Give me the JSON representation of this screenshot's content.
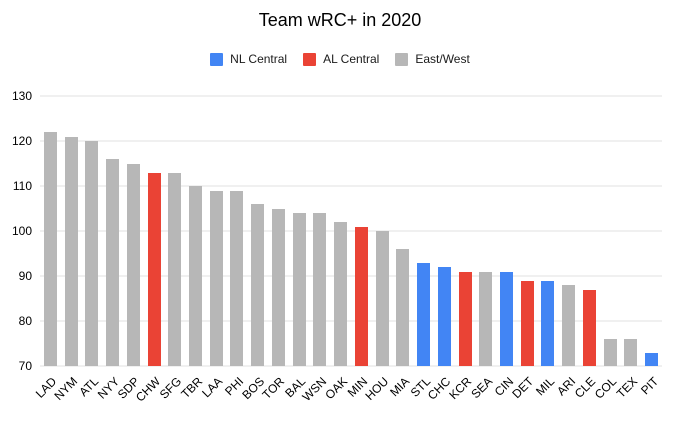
{
  "title": "Team wRC+ in 2020",
  "legend": {
    "items": [
      {
        "label": "NL Central",
        "color": "#4285F4"
      },
      {
        "label": "AL Central",
        "color": "#EA4335"
      },
      {
        "label": "East/West",
        "color": "#B7B7B7"
      }
    ]
  },
  "colors": {
    "nl_central": "#4285F4",
    "al_central": "#EA4335",
    "east_west": "#B7B7B7",
    "gridline": "#E0E0E0",
    "text": "#000000",
    "background": "#FFFFFF"
  },
  "chart_data": {
    "type": "bar",
    "title": "Team wRC+ in 2020",
    "xlabel": "",
    "ylabel": "",
    "ylim": [
      70,
      130
    ],
    "yticks": [
      70,
      80,
      90,
      100,
      110,
      120,
      130
    ],
    "grid": true,
    "legend_position": "top",
    "categories": [
      "LAD",
      "NYM",
      "ATL",
      "NYY",
      "SDP",
      "CHW",
      "SFG",
      "TBR",
      "LAA",
      "PHI",
      "BOS",
      "TOR",
      "BAL",
      "WSN",
      "OAK",
      "MIN",
      "HOU",
      "MIA",
      "STL",
      "CHC",
      "KCR",
      "SEA",
      "CIN",
      "DET",
      "MIL",
      "ARI",
      "CLE",
      "COL",
      "TEX",
      "PIT"
    ],
    "values": [
      122,
      121,
      120,
      116,
      115,
      113,
      113,
      110,
      109,
      109,
      106,
      105,
      104,
      104,
      102,
      101,
      100,
      96,
      93,
      92,
      91,
      91,
      91,
      89,
      89,
      88,
      87,
      76,
      76,
      73
    ],
    "groups": [
      "East/West",
      "East/West",
      "East/West",
      "East/West",
      "East/West",
      "AL Central",
      "East/West",
      "East/West",
      "East/West",
      "East/West",
      "East/West",
      "East/West",
      "East/West",
      "East/West",
      "East/West",
      "AL Central",
      "East/West",
      "East/West",
      "NL Central",
      "NL Central",
      "AL Central",
      "East/West",
      "NL Central",
      "AL Central",
      "NL Central",
      "East/West",
      "AL Central",
      "East/West",
      "East/West",
      "NL Central"
    ],
    "group_colors": {
      "NL Central": "#4285F4",
      "AL Central": "#EA4335",
      "East/West": "#B7B7B7"
    }
  }
}
